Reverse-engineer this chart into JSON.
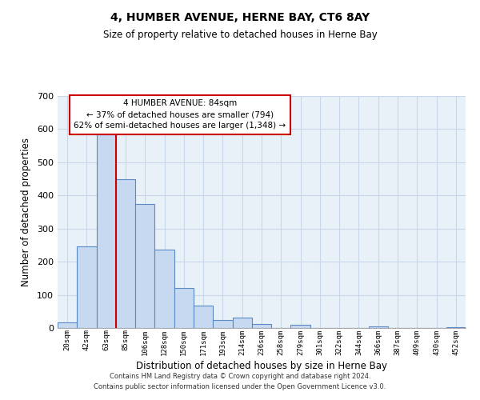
{
  "title": "4, HUMBER AVENUE, HERNE BAY, CT6 8AY",
  "subtitle": "Size of property relative to detached houses in Herne Bay",
  "xlabel": "Distribution of detached houses by size in Herne Bay",
  "ylabel": "Number of detached properties",
  "footer_line1": "Contains HM Land Registry data © Crown copyright and database right 2024.",
  "footer_line2": "Contains public sector information licensed under the Open Government Licence v3.0.",
  "bin_labels": [
    "20sqm",
    "42sqm",
    "63sqm",
    "85sqm",
    "106sqm",
    "128sqm",
    "150sqm",
    "171sqm",
    "193sqm",
    "214sqm",
    "236sqm",
    "258sqm",
    "279sqm",
    "301sqm",
    "322sqm",
    "344sqm",
    "366sqm",
    "387sqm",
    "409sqm",
    "430sqm",
    "452sqm"
  ],
  "bar_heights": [
    18,
    247,
    583,
    450,
    375,
    236,
    121,
    67,
    25,
    31,
    12,
    0,
    10,
    0,
    0,
    0,
    4,
    0,
    0,
    0,
    2
  ],
  "bar_color": "#c6d9f0",
  "bar_edge_color": "#5a8ac6",
  "vline_x": 3,
  "vline_color": "#cc0000",
  "ylim": [
    0,
    700
  ],
  "yticks": [
    0,
    100,
    200,
    300,
    400,
    500,
    600,
    700
  ],
  "annotation_title": "4 HUMBER AVENUE: 84sqm",
  "annotation_line1": "← 37% of detached houses are smaller (794)",
  "annotation_line2": "62% of semi-detached houses are larger (1,348) →",
  "annotation_box_color": "#ffffff",
  "annotation_box_edge_color": "#cc0000",
  "grid_color": "#c8d8e8",
  "bg_color": "#e8f0f8"
}
